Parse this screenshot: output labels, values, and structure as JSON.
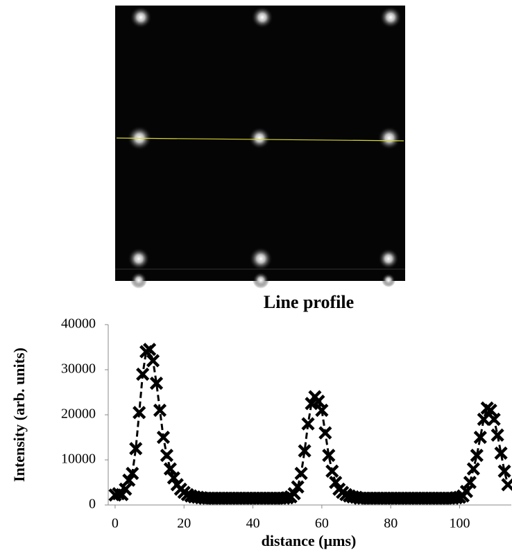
{
  "chart_data": {
    "type": "line",
    "title": "Line profile",
    "x_label": "distance (µms)",
    "y_label": "Intensity (arb. units)",
    "xlim": [
      -2,
      115
    ],
    "xticks": [
      0,
      20,
      40,
      60,
      80,
      100
    ],
    "ylim": [
      0,
      40000
    ],
    "yticks": [
      0,
      10000,
      20000,
      30000,
      40000
    ],
    "series": [
      {
        "color": "#000000",
        "x": [
          0,
          1,
          2,
          3,
          4,
          5,
          6,
          7,
          8,
          9,
          10,
          11,
          12,
          13,
          14,
          15,
          16,
          17,
          18,
          19,
          20,
          21,
          22,
          23,
          24,
          25,
          26,
          27,
          28,
          29,
          30,
          31,
          32,
          33,
          34,
          35,
          36,
          37,
          38,
          39,
          40,
          41,
          42,
          43,
          44,
          45,
          46,
          47,
          48,
          49,
          50,
          51,
          52,
          53,
          54,
          55,
          56,
          57,
          58,
          59,
          60,
          61,
          62,
          63,
          64,
          65,
          66,
          67,
          68,
          69,
          70,
          71,
          72,
          73,
          74,
          75,
          76,
          77,
          78,
          79,
          80,
          81,
          82,
          83,
          84,
          85,
          86,
          87,
          88,
          89,
          90,
          91,
          92,
          93,
          94,
          95,
          96,
          97,
          98,
          99,
          100,
          101,
          102,
          103,
          104,
          105,
          106,
          107,
          108,
          109,
          110,
          111,
          112,
          113,
          114
        ],
        "values": [
          2200,
          2500,
          2300,
          3500,
          5500,
          7000,
          12500,
          20500,
          29000,
          34000,
          34500,
          32000,
          27000,
          21000,
          15000,
          11000,
          8000,
          6000,
          4500,
          3500,
          2800,
          2300,
          2000,
          1800,
          1700,
          1600,
          1500,
          1500,
          1500,
          1500,
          1500,
          1500,
          1500,
          1500,
          1500,
          1500,
          1500,
          1500,
          1500,
          1500,
          1500,
          1500,
          1500,
          1500,
          1500,
          1500,
          1500,
          1500,
          1500,
          1500,
          1600,
          1800,
          2500,
          4000,
          7000,
          12000,
          18000,
          22500,
          24000,
          23000,
          21000,
          16000,
          11000,
          7500,
          5000,
          3500,
          2800,
          2300,
          2000,
          1800,
          1700,
          1500,
          1500,
          1500,
          1500,
          1500,
          1500,
          1500,
          1500,
          1500,
          1500,
          1500,
          1500,
          1500,
          1500,
          1500,
          1500,
          1500,
          1500,
          1500,
          1500,
          1500,
          1500,
          1500,
          1500,
          1500,
          1500,
          1500,
          1500,
          1600,
          1700,
          2000,
          3000,
          5000,
          8000,
          11000,
          15000,
          19000,
          21500,
          21000,
          19000,
          15500,
          11500,
          7500,
          4500
        ]
      }
    ]
  }
}
